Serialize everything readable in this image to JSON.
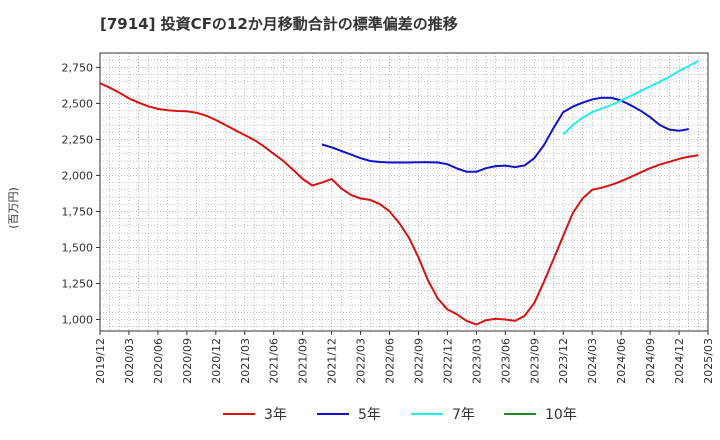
{
  "chart_data": {
    "type": "line",
    "title": "[7914]  投資CFの12か月移動合計の標準偏差の推移",
    "ylabel": "(百万円)",
    "xlabel": "",
    "ylim": [
      920,
      2850
    ],
    "yticks": [
      1000,
      1250,
      1500,
      1750,
      2000,
      2250,
      2500,
      2750
    ],
    "ytick_labels": [
      "1,000",
      "1,250",
      "1,500",
      "1,750",
      "2,000",
      "2,250",
      "2,500",
      "2,750"
    ],
    "xticks": [
      "2019/12",
      "2020/03",
      "2020/06",
      "2020/09",
      "2020/12",
      "2021/03",
      "2021/06",
      "2021/09",
      "2021/12",
      "2022/03",
      "2022/06",
      "2022/09",
      "2022/12",
      "2023/03",
      "2023/06",
      "2023/09",
      "2023/12",
      "2024/03",
      "2024/06",
      "2024/09",
      "2024/12",
      "2025/03"
    ],
    "grid": true,
    "legend_position": "bottom",
    "series": [
      {
        "name": "3年",
        "color": "#dd1111",
        "start": "2019/12",
        "values": [
          2640,
          2610,
          2575,
          2535,
          2505,
          2480,
          2462,
          2452,
          2447,
          2445,
          2435,
          2415,
          2385,
          2350,
          2315,
          2280,
          2245,
          2200,
          2150,
          2100,
          2040,
          1975,
          1930,
          1950,
          1975,
          1910,
          1865,
          1840,
          1830,
          1800,
          1750,
          1670,
          1570,
          1430,
          1270,
          1145,
          1070,
          1035,
          990,
          965,
          995,
          1005,
          1000,
          990,
          1025,
          1115,
          1260,
          1420,
          1580,
          1740,
          1840,
          1900,
          1915,
          1935,
          1960,
          1990,
          2020,
          2050,
          2075,
          2095,
          2115,
          2130,
          2140
        ]
      },
      {
        "name": "5年",
        "color": "#1111cc",
        "start": "2021/11",
        "values": [
          2215,
          2195,
          2170,
          2145,
          2120,
          2100,
          2093,
          2090,
          2090,
          2090,
          2092,
          2092,
          2090,
          2078,
          2048,
          2025,
          2025,
          2050,
          2065,
          2068,
          2058,
          2070,
          2120,
          2210,
          2330,
          2440,
          2478,
          2505,
          2528,
          2540,
          2538,
          2520,
          2487,
          2450,
          2405,
          2350,
          2318,
          2310,
          2322
        ]
      },
      {
        "name": "7年",
        "color": "#22eeee",
        "start": "2023/12",
        "values": [
          2285,
          2350,
          2400,
          2440,
          2465,
          2490,
          2520,
          2552,
          2585,
          2618,
          2650,
          2685,
          2725,
          2760,
          2795
        ]
      },
      {
        "name": "10年",
        "color": "#228822",
        "start": "2019/12",
        "values": []
      }
    ]
  }
}
